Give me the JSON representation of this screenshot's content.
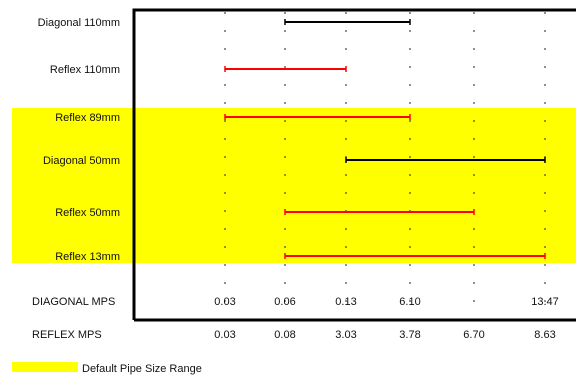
{
  "chart_data": {
    "type": "range-bar",
    "rows": [
      {
        "label": "Diagonal 110mm",
        "series": "Diagonal",
        "start": 0.06,
        "end": 6.1
      },
      {
        "label": "Reflex 110mm",
        "series": "Reflex",
        "start": 0.03,
        "end": 3.03
      },
      {
        "label": "Reflex 89mm",
        "series": "Reflex",
        "start": 0.03,
        "end": 3.78
      },
      {
        "label": "Diagonal 50mm",
        "series": "Diagonal",
        "start": 0.13,
        "end": 13.47
      },
      {
        "label": "Reflex 50mm",
        "series": "Reflex",
        "start": 0.08,
        "end": 6.7
      },
      {
        "label": "Reflex 13mm",
        "series": "Reflex",
        "start": 0.08,
        "end": 8.63
      }
    ],
    "axes": [
      {
        "label": "DIAGONAL MPS",
        "ticks": [
          "0.03",
          "0.06",
          "0.13",
          "6.10",
          "13.47"
        ],
        "tick_columns": [
          0,
          1,
          2,
          3,
          5
        ]
      },
      {
        "label": "REFLEX MPS",
        "ticks": [
          "0.03",
          "0.08",
          "3.03",
          "3.78",
          "6.70",
          "8.63"
        ],
        "tick_columns": [
          0,
          1,
          2,
          3,
          4,
          5
        ]
      }
    ],
    "highlight": {
      "rows": [
        "Reflex 89mm",
        "Diagonal 50mm",
        "Reflex 50mm",
        "Reflex 13mm"
      ],
      "color": "#ffff00"
    },
    "legend": {
      "label": "Default Pipe Size Range",
      "color": "#ffff00",
      "placement": "bottom-left"
    },
    "colors": {
      "Diagonal": "#000000",
      "Reflex": "#ff0000",
      "frame": "#000000"
    },
    "grid": "dashed-vertical"
  }
}
